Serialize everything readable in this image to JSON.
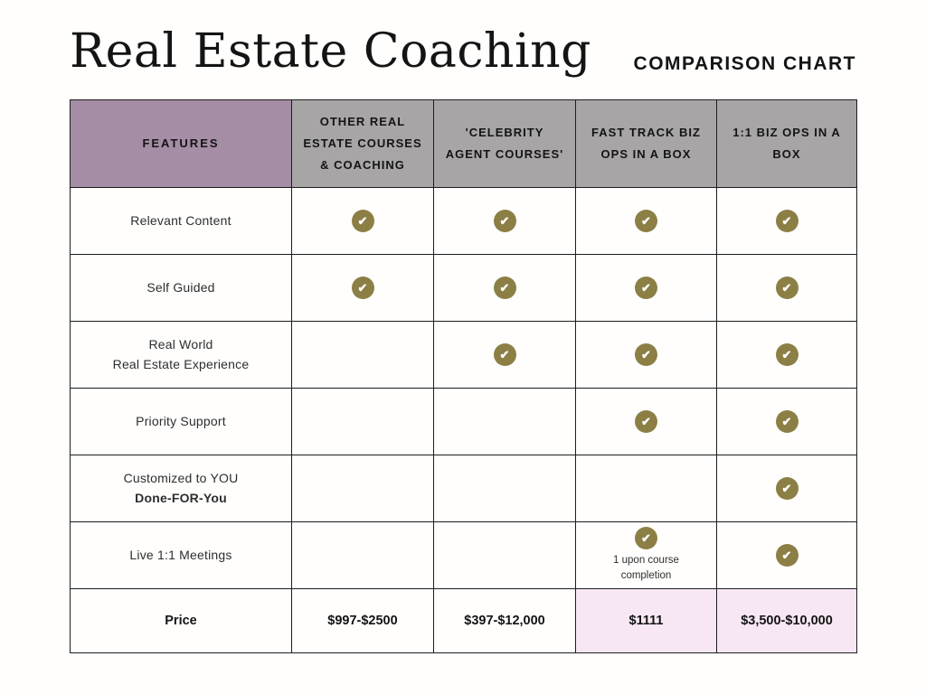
{
  "page": {
    "title": "Real Estate Coaching",
    "subtitle": "COMPARISON CHART"
  },
  "colors": {
    "features_header_bg": "#a58da5",
    "column_header_bg": "#a8a5a6",
    "check_circle": "#8c7f45",
    "price_highlight_bg": "#f7e7f5",
    "border": "#1d1d1d"
  },
  "table": {
    "feature_header": "FEATURES",
    "column_headers": [
      "OTHER REAL ESTATE COURSES & COACHING",
      "'CELEBRITY AGENT COURSES'",
      "FAST TRACK BIZ OPS IN A BOX",
      "1:1 BIZ OPS IN A BOX"
    ],
    "check_icon": "✔",
    "rows": [
      {
        "feature_lines": [
          "Relevant Content"
        ],
        "bold_line": -1,
        "checks": [
          true,
          true,
          true,
          true
        ],
        "notes": [
          "",
          "",
          "",
          ""
        ]
      },
      {
        "feature_lines": [
          "Self Guided"
        ],
        "bold_line": -1,
        "checks": [
          true,
          true,
          true,
          true
        ],
        "notes": [
          "",
          "",
          "",
          ""
        ]
      },
      {
        "feature_lines": [
          "Real World",
          "Real Estate Experience"
        ],
        "bold_line": -1,
        "checks": [
          false,
          true,
          true,
          true
        ],
        "notes": [
          "",
          "",
          "",
          ""
        ]
      },
      {
        "feature_lines": [
          "Priority Support"
        ],
        "bold_line": -1,
        "checks": [
          false,
          false,
          true,
          true
        ],
        "notes": [
          "",
          "",
          "",
          ""
        ]
      },
      {
        "feature_lines": [
          "Customized to YOU",
          "Done-FOR-You"
        ],
        "bold_line": 1,
        "checks": [
          false,
          false,
          false,
          true
        ],
        "notes": [
          "",
          "",
          "",
          ""
        ]
      },
      {
        "feature_lines": [
          "Live 1:1 Meetings"
        ],
        "bold_line": -1,
        "checks": [
          false,
          false,
          true,
          true
        ],
        "notes": [
          "",
          "",
          "1 upon course completion",
          ""
        ]
      }
    ],
    "price_row": {
      "label": "Price",
      "values": [
        "$997-$2500",
        "$397-$12,000",
        "$1111",
        "$3,500-$10,000"
      ],
      "highlighted": [
        false,
        false,
        true,
        true
      ]
    }
  },
  "chart_data": {
    "type": "table",
    "title": "Real Estate Coaching",
    "subtitle": "COMPARISON CHART",
    "columns": [
      "FEATURES",
      "OTHER REAL ESTATE COURSES & COACHING",
      "'CELEBRITY AGENT COURSES'",
      "FAST TRACK BIZ OPS IN A BOX",
      "1:1 BIZ OPS IN A BOX"
    ],
    "rows": [
      [
        "Relevant Content",
        "yes",
        "yes",
        "yes",
        "yes"
      ],
      [
        "Self Guided",
        "yes",
        "yes",
        "yes",
        "yes"
      ],
      [
        "Real World Real Estate Experience",
        "",
        "yes",
        "yes",
        "yes"
      ],
      [
        "Priority Support",
        "",
        "",
        "yes",
        "yes"
      ],
      [
        "Customized to YOU Done-FOR-You",
        "",
        "",
        "",
        "yes"
      ],
      [
        "Live 1:1 Meetings",
        "",
        "",
        "yes (1 upon course completion)",
        "yes"
      ],
      [
        "Price",
        "$997-$2500",
        "$397-$12,000",
        "$1111",
        "$3,500-$10,000"
      ]
    ],
    "legend_position": "none",
    "grid": true
  }
}
